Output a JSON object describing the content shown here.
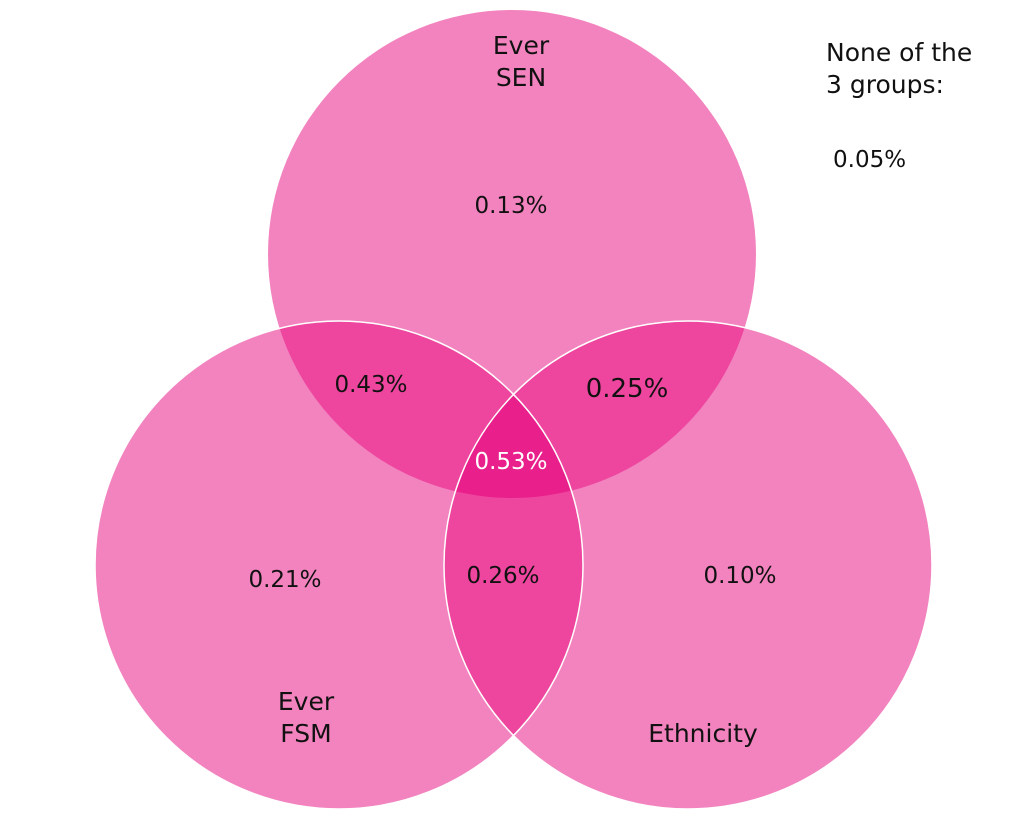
{
  "colors": {
    "single": "#f283bf",
    "double": "#ee459e",
    "triple": "#e9208c",
    "outline": "#ffffff"
  },
  "sets": [
    {
      "label_line1": "Ever",
      "label_line2": "SEN",
      "only": "0.13%"
    },
    {
      "label_line1": "Ever",
      "label_line2": "FSM",
      "only": "0.21%"
    },
    {
      "label_line1": "Ethnicity",
      "label_line2": "",
      "only": "0.10%"
    }
  ],
  "intersections": {
    "sen_fsm": "0.43%",
    "sen_ethnicity": "0.25%",
    "fsm_ethnicity": "0.26%",
    "all_three": "0.53%"
  },
  "none": {
    "line1": "None of the",
    "line2": "3 groups:",
    "value": "0.05%"
  }
}
